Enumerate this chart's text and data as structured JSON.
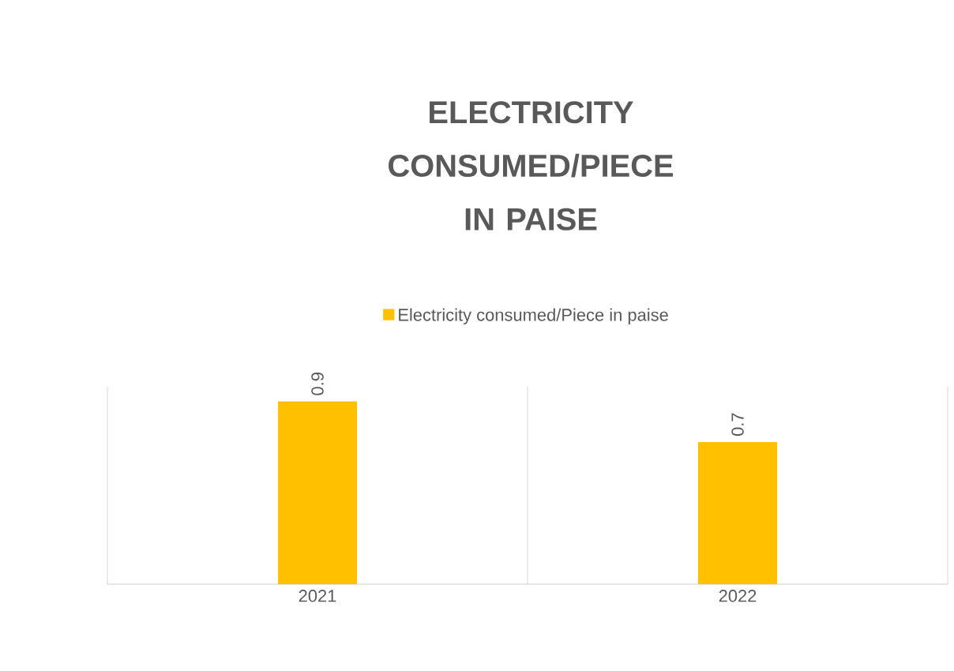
{
  "chart_data": {
    "type": "bar",
    "title": "ELECTRICITY CONSUMED/PIECE IN PAISE",
    "categories": [
      "2021",
      "2022"
    ],
    "series": [
      {
        "name": "Electricity consumed/Piece in paise",
        "color": "#ffc000",
        "values": [
          0.9,
          0.7
        ]
      }
    ],
    "data_labels": true,
    "grid": "x",
    "legend": "top"
  }
}
